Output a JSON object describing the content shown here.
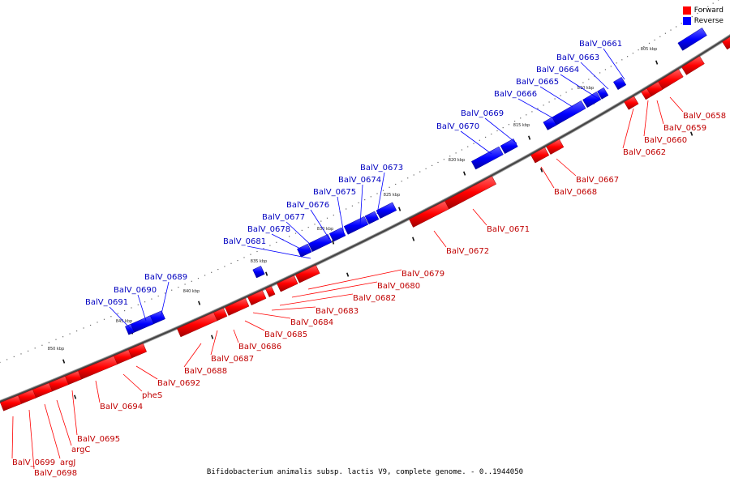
{
  "legend": {
    "forward_label": "Forward",
    "reverse_label": "Reverse",
    "forward_color": "#ff0000",
    "reverse_color": "#0000ff"
  },
  "title": "Bifidobacterium animalis subsp. lactis V9, complete genome. - 0..1944050",
  "ticks": [
    "805 kbp",
    "810 kbp",
    "815 kbp",
    "820 kbp",
    "825 kbp",
    "830 kbp",
    "835 kbp",
    "840 kbp",
    "845 kbp",
    "850 kbp"
  ],
  "forward_genes": [
    "BalV_0658",
    "BalV_0659",
    "BalV_0660",
    "BalV_0662",
    "BalV_0667",
    "BalV_0668",
    "BalV_0671",
    "BalV_0672",
    "BalV_0679",
    "BalV_0680",
    "BalV_0682",
    "BalV_0683",
    "BalV_0684",
    "BalV_0685",
    "BalV_0686",
    "BalV_0687",
    "BalV_0688",
    "BalV_0692",
    "pheS",
    "BalV_0694",
    "BalV_0695",
    "argC",
    "argJ",
    "BalV_0698",
    "BalV_0699"
  ],
  "reverse_genes": [
    "BalV_0661",
    "BalV_0663",
    "BalV_0664",
    "BalV_0665",
    "BalV_0666",
    "BalV_0669",
    "BalV_0670",
    "BalV_0673",
    "BalV_0674",
    "BalV_0675",
    "BalV_0676",
    "BalV_0677",
    "BalV_0678",
    "BalV_0681",
    "BalV_0689",
    "BalV_0690",
    "BalV_0691"
  ]
}
